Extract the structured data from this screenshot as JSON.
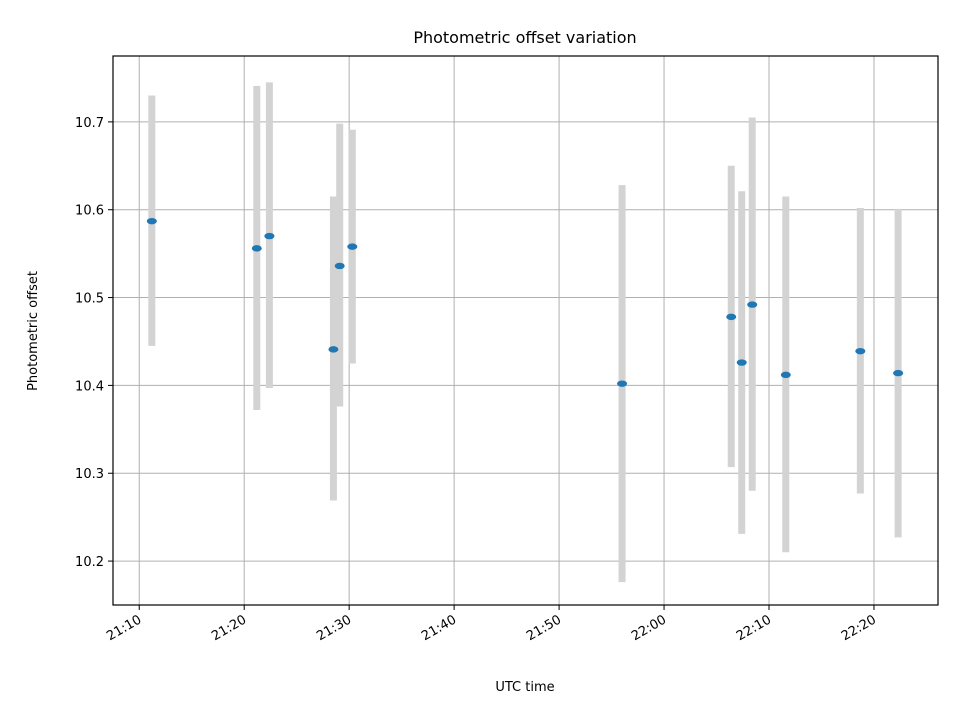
{
  "chart_data": {
    "type": "scatter",
    "title": "Photometric offset variation",
    "xlabel": "UTC time",
    "ylabel": "Photometric offset",
    "x_ticks": [
      "21:10",
      "21:20",
      "21:30",
      "21:40",
      "21:50",
      "22:00",
      "22:10",
      "22:20"
    ],
    "y_ticks": [
      "10.2",
      "10.3",
      "10.4",
      "10.5",
      "10.6",
      "10.7"
    ],
    "xlim": [
      "21:07:30",
      "22:26:06"
    ],
    "ylim": [
      10.15,
      10.775
    ],
    "grid": true,
    "colors": {
      "point": "#1f77b4",
      "errorbar": "#d3d3d3",
      "grid": "#b0b0b0"
    },
    "points": [
      {
        "x": "21:11:12",
        "y": 10.587,
        "yerr_low": 10.445,
        "yerr_high": 10.73
      },
      {
        "x": "21:21:12",
        "y": 10.556,
        "yerr_low": 10.372,
        "yerr_high": 10.741
      },
      {
        "x": "21:22:24",
        "y": 10.57,
        "yerr_low": 10.397,
        "yerr_high": 10.745
      },
      {
        "x": "21:28:30",
        "y": 10.441,
        "yerr_low": 10.269,
        "yerr_high": 10.615
      },
      {
        "x": "21:29:06",
        "y": 10.536,
        "yerr_low": 10.376,
        "yerr_high": 10.698
      },
      {
        "x": "21:30:18",
        "y": 10.558,
        "yerr_low": 10.425,
        "yerr_high": 10.691
      },
      {
        "x": "21:56:00",
        "y": 10.402,
        "yerr_low": 10.176,
        "yerr_high": 10.628
      },
      {
        "x": "22:06:24",
        "y": 10.478,
        "yerr_low": 10.307,
        "yerr_high": 10.65
      },
      {
        "x": "22:07:24",
        "y": 10.426,
        "yerr_low": 10.231,
        "yerr_high": 10.621
      },
      {
        "x": "22:08:24",
        "y": 10.492,
        "yerr_low": 10.28,
        "yerr_high": 10.705
      },
      {
        "x": "22:11:36",
        "y": 10.412,
        "yerr_low": 10.21,
        "yerr_high": 10.615
      },
      {
        "x": "22:18:42",
        "y": 10.439,
        "yerr_low": 10.277,
        "yerr_high": 10.602
      },
      {
        "x": "22:22:18",
        "y": 10.414,
        "yerr_low": 10.227,
        "yerr_high": 10.601
      }
    ]
  }
}
